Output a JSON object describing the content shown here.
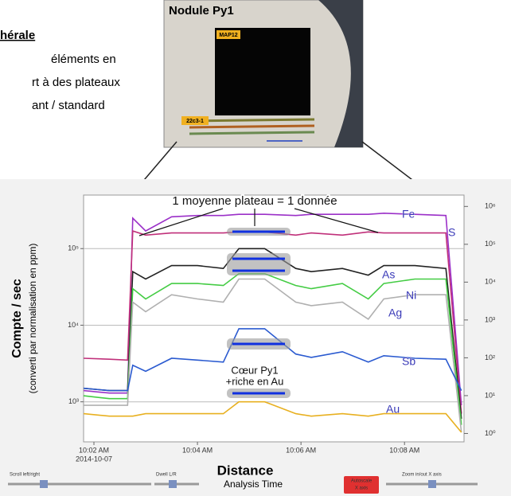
{
  "slide": {
    "heading": "hérale",
    "lines": [
      "éléments en",
      "rt à des plateaux",
      "ant / standard"
    ]
  },
  "photo": {
    "title": "Nodule Py1",
    "map_label": "MAP12",
    "spot_label": "22c3-1"
  },
  "controls": {
    "scroll": "Scroll left/right",
    "dwell": "Dwell L/R",
    "axis_title": "Analysis Time",
    "autoscale": [
      "Autoscale",
      "X axis"
    ],
    "zoom": "Zoom in/out X axis"
  },
  "chart_data": {
    "type": "line",
    "log_y": true,
    "grid": true,
    "xlabel": "Distance",
    "ylabel": "Compte / sec",
    "ylabel_note": "(converti par normalisation en ppm)",
    "x_date": "2014-10-07",
    "annotations": [
      "1 moyenne plateau = 1 donnée",
      "Cœur Py1",
      "+riche en Au"
    ],
    "x": [
      1.8,
      2.3,
      2.65,
      2.75,
      3.0,
      3.5,
      4.0,
      4.5,
      4.8,
      5.3,
      5.9,
      6.2,
      6.8,
      7.3,
      7.6,
      8.2,
      8.8,
      9.1
    ],
    "xlim": [
      1.8,
      9.15
    ],
    "xticks": [
      {
        "value": 2,
        "label": "10:02 AM"
      },
      {
        "value": 4,
        "label": "10:04 AM"
      },
      {
        "value": 6,
        "label": "10:06 AM"
      },
      {
        "value": 8,
        "label": "10:08 AM"
      }
    ],
    "ylim": [
      300,
      500000
    ],
    "yticks": [
      {
        "value": 1000,
        "label": "10³"
      },
      {
        "value": 10000,
        "label": "10⁴"
      },
      {
        "value": 100000,
        "label": "10⁵"
      }
    ],
    "y2lim": [
      0.6,
      2000000
    ],
    "y2ticks": [
      {
        "value": 1,
        "label": "10⁰"
      },
      {
        "value": 10,
        "label": "10¹"
      },
      {
        "value": 100,
        "label": "10²"
      },
      {
        "value": 1000,
        "label": "10³"
      },
      {
        "value": 10000,
        "label": "10⁴"
      },
      {
        "value": 100000,
        "label": "10⁵"
      },
      {
        "value": 1000000,
        "label": "10⁶"
      }
    ],
    "series": [
      {
        "name": "Fe",
        "color": "#9b30c8",
        "values": [
          1400,
          1300,
          1300,
          250000,
          170000,
          260000,
          270000,
          270000,
          280000,
          280000,
          270000,
          280000,
          280000,
          280000,
          290000,
          280000,
          270000,
          900
        ]
      },
      {
        "name": "S",
        "color": "#c0307a",
        "values": [
          3700,
          3600,
          3500,
          170000,
          150000,
          160000,
          160000,
          160000,
          165000,
          165000,
          150000,
          160000,
          150000,
          165000,
          160000,
          160000,
          160000,
          700
        ]
      },
      {
        "name": "As",
        "color": "#222222",
        "values": [
          1500,
          1400,
          1400,
          50000,
          40000,
          60000,
          60000,
          55000,
          100000,
          100000,
          55000,
          50000,
          55000,
          45000,
          60000,
          60000,
          55000,
          600
        ]
      },
      {
        "name": "Ni",
        "color": "#44cc44",
        "values": [
          1200,
          1100,
          1100,
          30000,
          22000,
          35000,
          35000,
          33000,
          47000,
          47000,
          33000,
          30000,
          35000,
          22000,
          35000,
          40000,
          40000,
          500
        ]
      },
      {
        "name": "Ag",
        "color": "#b0b0b0",
        "values": [
          900,
          900,
          900,
          20000,
          15000,
          25000,
          22000,
          20000,
          40000,
          40000,
          20000,
          18000,
          20000,
          12000,
          22000,
          25000,
          25000,
          400
        ]
      },
      {
        "name": "Sb",
        "color": "#2a5ad0",
        "values": [
          1500,
          1400,
          1400,
          3000,
          2500,
          3700,
          3500,
          3300,
          9000,
          9000,
          4200,
          3800,
          4500,
          3300,
          4000,
          3700,
          3600,
          1400
        ]
      },
      {
        "name": "Au",
        "color": "#e8b020",
        "values": [
          700,
          650,
          650,
          650,
          700,
          700,
          700,
          700,
          1000,
          1000,
          700,
          650,
          700,
          650,
          700,
          700,
          700,
          400
        ]
      }
    ]
  }
}
